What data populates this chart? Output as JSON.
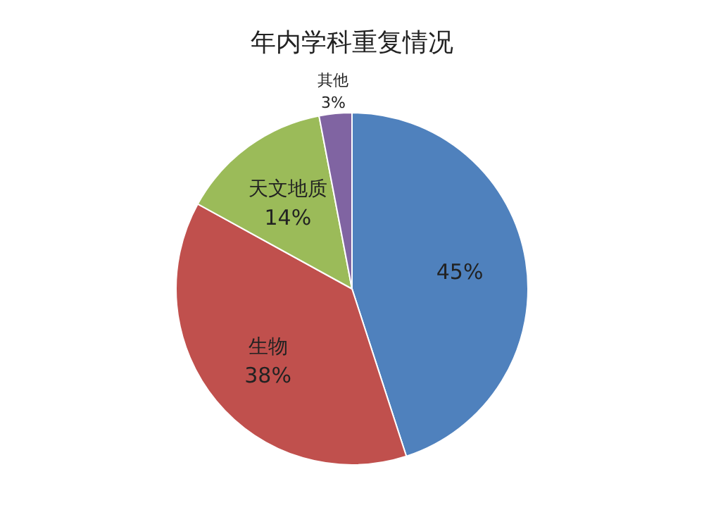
{
  "chart_data": {
    "type": "pie",
    "title": "年内学科重复情况",
    "categories": [
      null,
      "生物",
      "天文地质",
      "其他"
    ],
    "values": [
      45,
      38,
      14,
      3
    ],
    "colors": [
      "#4f81bd",
      "#c0504d",
      "#9bbb59",
      "#8064a2"
    ],
    "value_labels": [
      "45%",
      "38%",
      "14%",
      "3%"
    ]
  }
}
